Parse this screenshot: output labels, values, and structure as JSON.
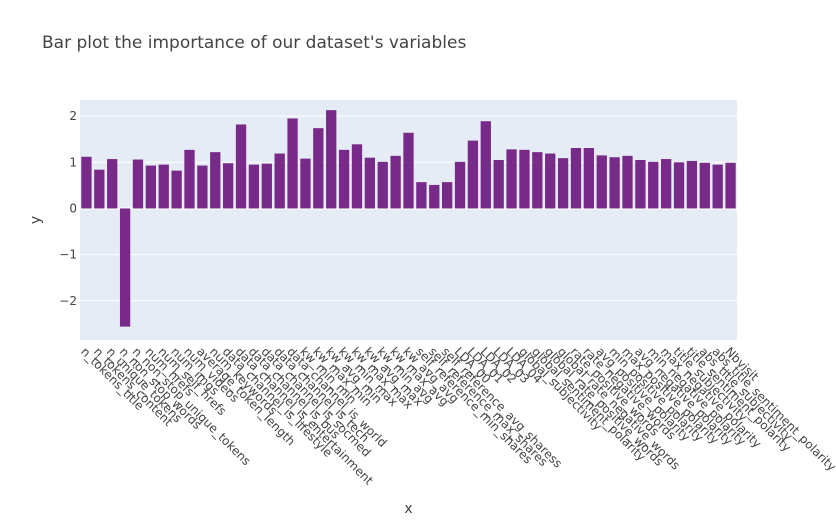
{
  "title": "Bar plot the importance of our dataset's variables",
  "colors": {
    "bar": "#772a88",
    "plot_bg": "#e5ecf6",
    "grid": "#ffffff"
  },
  "chart_data": {
    "type": "bar",
    "title": "Bar plot the importance of our dataset's variables",
    "xlabel": "x",
    "ylabel": "y",
    "ylim": [
      -2.85,
      2.35
    ],
    "yticks": [
      -2,
      -1,
      0,
      1,
      2
    ],
    "ytick_labels": [
      "−2",
      "−1",
      "0",
      "1",
      "2"
    ],
    "grid": true,
    "categories": [
      "n_tokens_title",
      "n_tokens_content",
      "n_unique_tokens",
      "n_non_stop_words",
      "n_non_stop_unique_tokens",
      "num_hrefs",
      "num_self_hrefs",
      "num_imgs",
      "num_videos",
      "average_token_length",
      "num_keywords",
      "data_channel_is_lifestyle",
      "data_channel_is_entertainment",
      "data_channel_is_bus",
      "data_channel_is_socmed",
      "data_channel_is_tech",
      "data_channel_is_world",
      "kw_min_min",
      "kw_max_min",
      "kw_avg_min",
      "kw_min_max",
      "kw_max_max",
      "kw_avg_max",
      "kw_min_avg",
      "kw_max_avg",
      "kw_avg_avg",
      "self_reference_min_shares",
      "self_reference_max_shares",
      "self_reference_avg_sharess",
      "LDA_00",
      "LDA_01",
      "LDA_02",
      "LDA_03",
      "LDA_04",
      "global_subjectivity",
      "global_sentiment_polarity",
      "global_rate_positive_words",
      "global_rate_negative_words",
      "rate_positive_words",
      "rate_negative_words",
      "avg_positive_polarity",
      "min_positive_polarity",
      "max_positive_polarity",
      "avg_negative_polarity",
      "min_negative_polarity",
      "max_negative_polarity",
      "title_subjectivity",
      "title_sentiment_polarity",
      "abs_title_subjectivity",
      "abs_title_sentiment_polarity",
      "Nbvisit"
    ],
    "values": [
      1.12,
      0.84,
      1.07,
      -2.56,
      1.06,
      0.93,
      0.95,
      0.82,
      1.27,
      0.93,
      1.22,
      0.98,
      1.82,
      0.95,
      0.97,
      1.19,
      1.95,
      1.08,
      1.74,
      2.13,
      1.27,
      1.39,
      1.1,
      1.01,
      1.14,
      1.64,
      0.57,
      0.51,
      0.57,
      1.01,
      1.47,
      1.89,
      1.05,
      1.28,
      1.27,
      1.22,
      1.19,
      1.09,
      1.31,
      1.31,
      1.15,
      1.11,
      1.14,
      1.05,
      1.01,
      1.07,
      1.0,
      1.03,
      0.99,
      0.95,
      0.99
    ]
  }
}
